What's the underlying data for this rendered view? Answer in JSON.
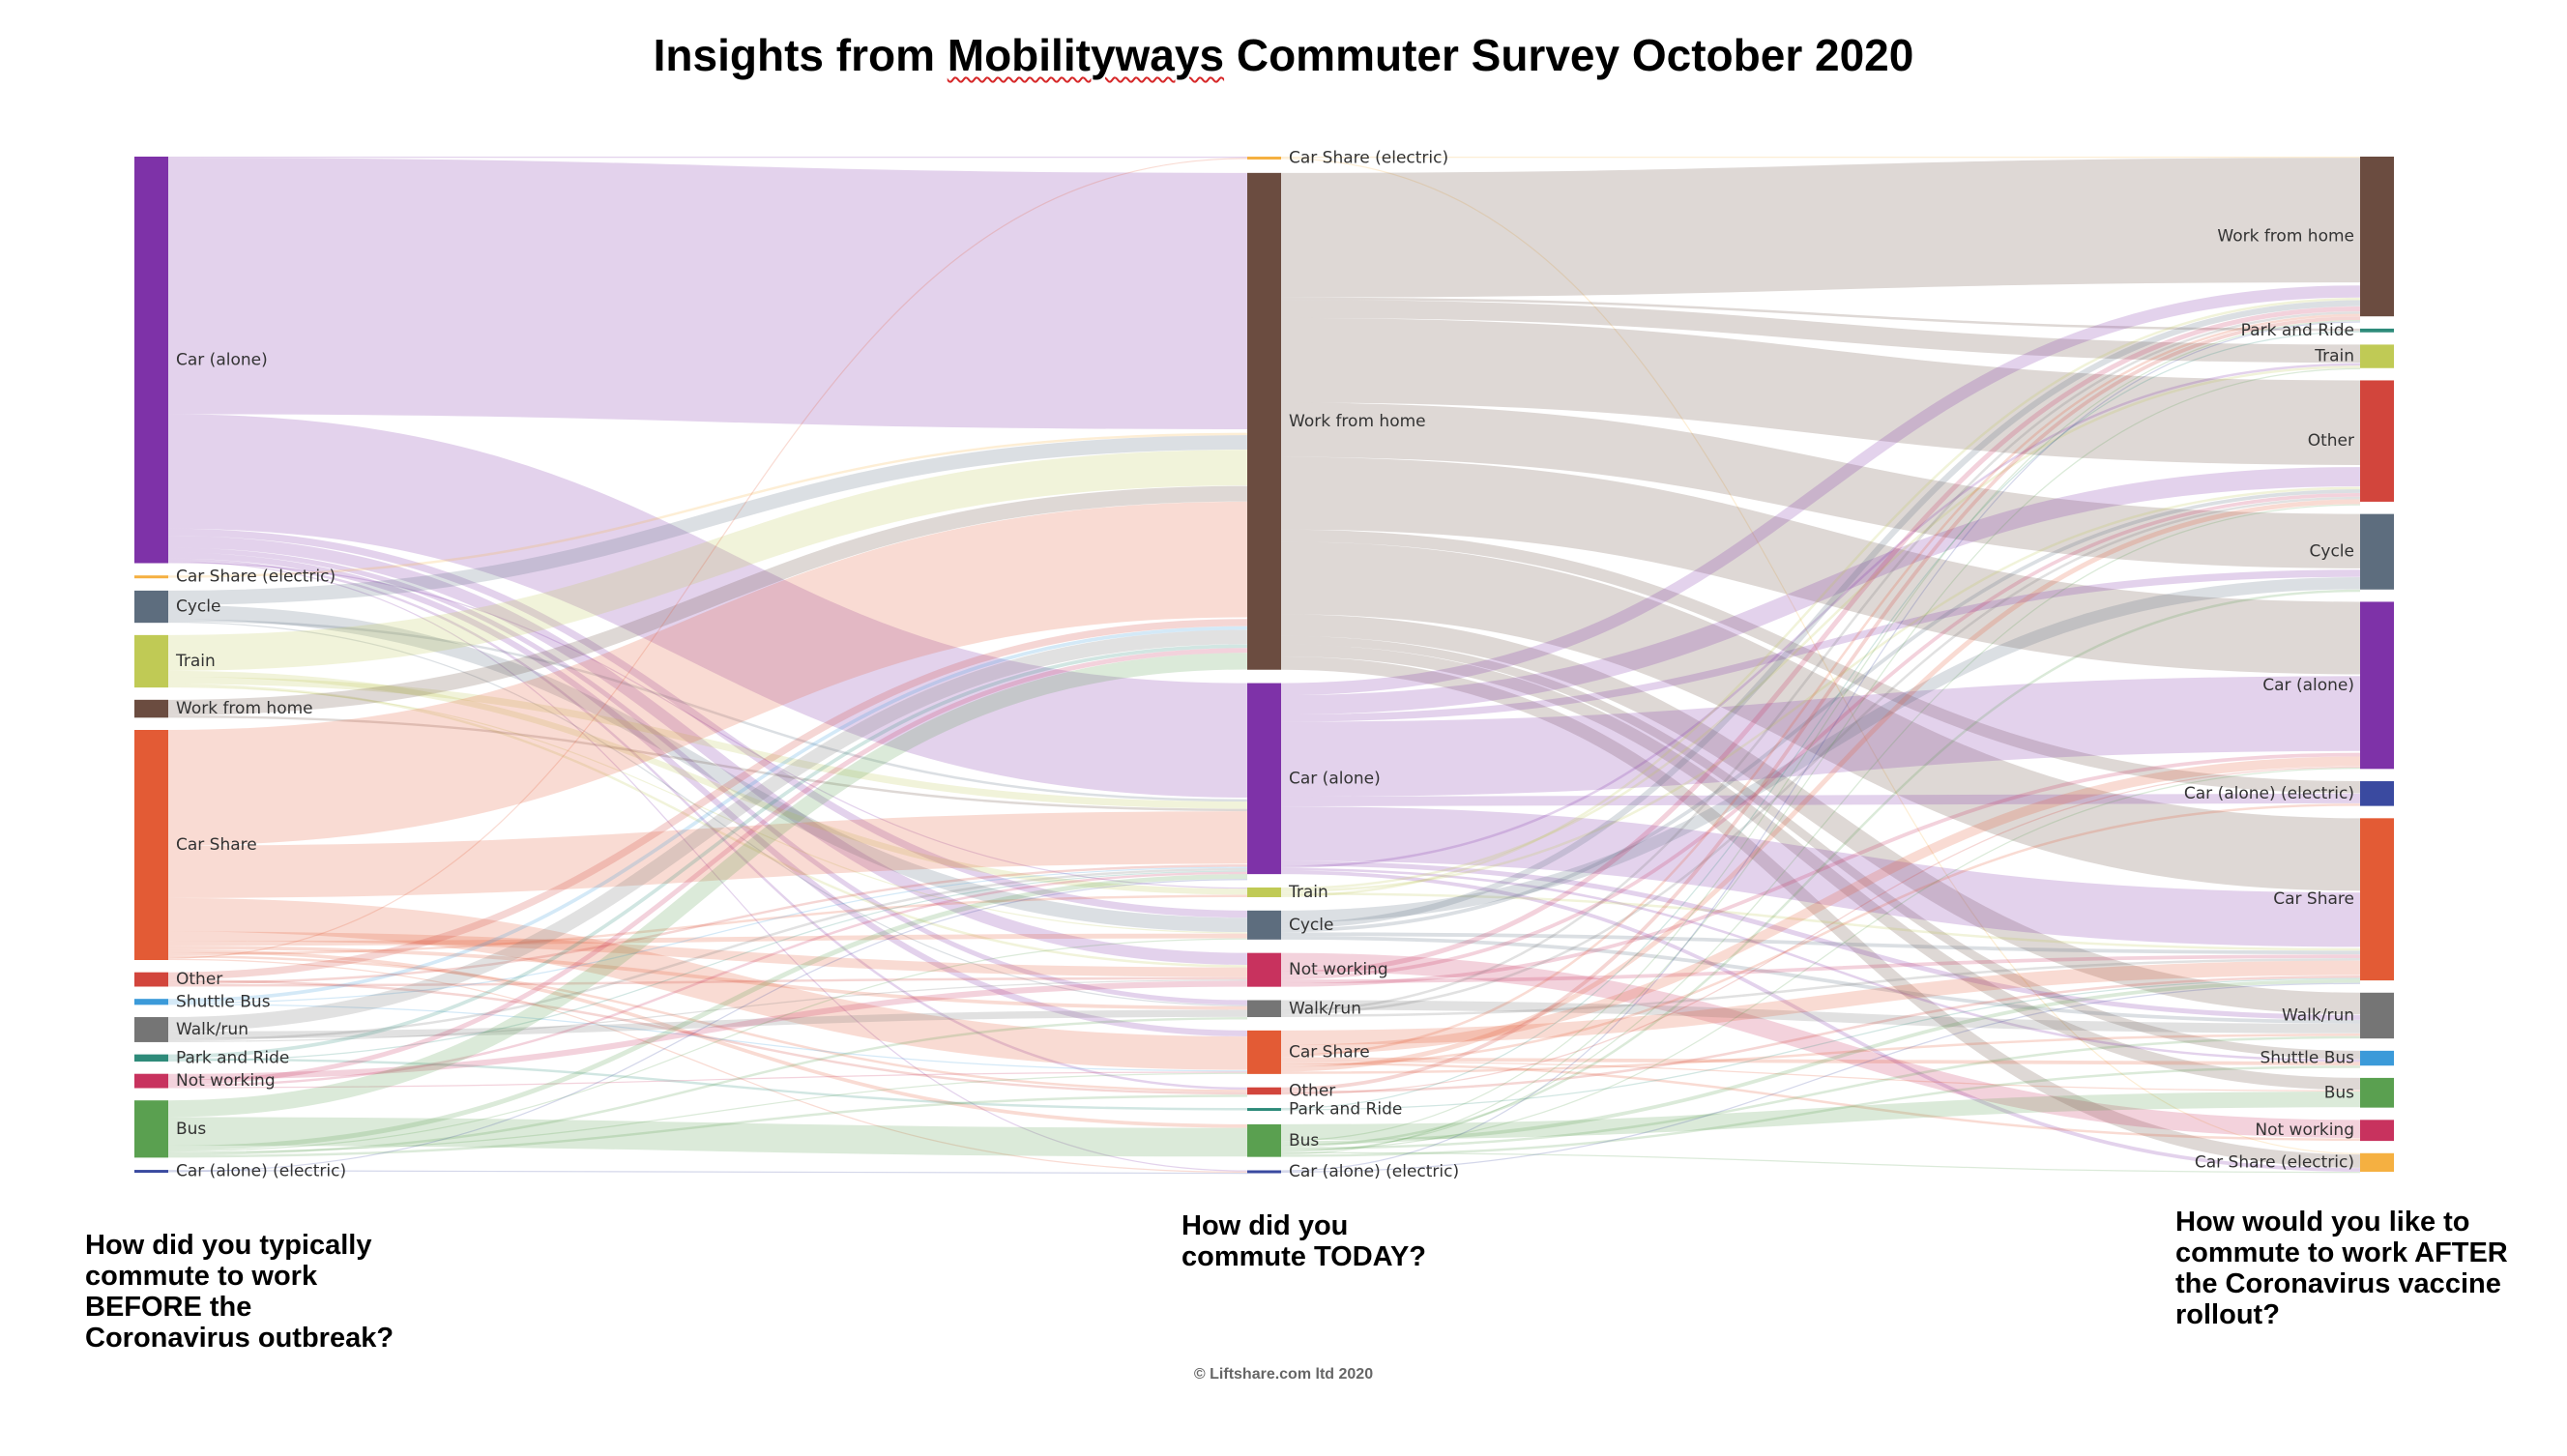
{
  "title": {
    "before": "Insights from ",
    "brand": "Mobilityways",
    "after": " Commuter Survey October 2020"
  },
  "questions": {
    "before": "How did you typically commute to work BEFORE the Coronavirus outbreak?",
    "today": "How did you commute TODAY?",
    "after": "How would you like to commute to work AFTER the Coronavirus vaccine rollout?"
  },
  "copyright": "© Liftshare.com ltd 2020",
  "colors": {
    "Car (alone)": "#7e32a8",
    "Car Share (electric)": "#f5b041",
    "Cycle": "#5d6d7e",
    "Train": "#c0ca55",
    "Work from home": "#6b4c40",
    "Car Share": "#e35b35",
    "Other": "#d2453c",
    "Shuttle Bus": "#3b9ad9",
    "Walk/run": "#757575",
    "Park and Ride": "#2e8b7a",
    "Not working": "#c8325e",
    "Bus": "#5aa050",
    "Car (alone) (electric)": "#3a4aa0"
  },
  "chart_data": {
    "type": "sankey",
    "columns": [
      {
        "name": "before",
        "nodes": [
          {
            "label": "Car (alone)",
            "value": 341
          },
          {
            "label": "Car Share (electric)",
            "value": 2
          },
          {
            "label": "Cycle",
            "value": 27
          },
          {
            "label": "Train",
            "value": 44
          },
          {
            "label": "Work from home",
            "value": 15
          },
          {
            "label": "Car Share",
            "value": 193
          },
          {
            "label": "Other",
            "value": 12
          },
          {
            "label": "Shuttle Bus",
            "value": 5
          },
          {
            "label": "Walk/run",
            "value": 21
          },
          {
            "label": "Park and Ride",
            "value": 6
          },
          {
            "label": "Not working",
            "value": 12
          },
          {
            "label": "Bus",
            "value": 48
          },
          {
            "label": "Car (alone) (electric)",
            "value": 2
          }
        ]
      },
      {
        "name": "today",
        "nodes": [
          {
            "label": "Car Share (electric)",
            "value": 2
          },
          {
            "label": "Work from home",
            "value": 411
          },
          {
            "label": "Car (alone)",
            "value": 158
          },
          {
            "label": "Train",
            "value": 8
          },
          {
            "label": "Cycle",
            "value": 24
          },
          {
            "label": "Not working",
            "value": 28
          },
          {
            "label": "Walk/run",
            "value": 14
          },
          {
            "label": "Car Share",
            "value": 36
          },
          {
            "label": "Other",
            "value": 6
          },
          {
            "label": "Park and Ride",
            "value": 2
          },
          {
            "label": "Bus",
            "value": 27
          },
          {
            "label": "Car (alone) (electric)",
            "value": 2
          }
        ]
      },
      {
        "name": "after",
        "nodes": [
          {
            "label": "Work from home",
            "value": 129
          },
          {
            "label": "Park and Ride",
            "value": 3
          },
          {
            "label": "Train",
            "value": 19
          },
          {
            "label": "Other",
            "value": 98
          },
          {
            "label": "Cycle",
            "value": 61
          },
          {
            "label": "Car (alone)",
            "value": 135
          },
          {
            "label": "Car (alone) (electric)",
            "value": 20
          },
          {
            "label": "Car Share",
            "value": 131
          },
          {
            "label": "Walk/run",
            "value": 37
          },
          {
            "label": "Shuttle Bus",
            "value": 12
          },
          {
            "label": "Bus",
            "value": 24
          },
          {
            "label": "Not working",
            "value": 17
          },
          {
            "label": "Car Share (electric)",
            "value": 15
          }
        ]
      }
    ],
    "links": [
      {
        "from": "Car (alone)",
        "to": "Car Share (electric)",
        "value": 1,
        "stage": 0
      },
      {
        "from": "Car (alone)",
        "to": "Work from home",
        "value": 215,
        "stage": 0
      },
      {
        "from": "Car (alone)",
        "to": "Car (alone)",
        "value": 96,
        "stage": 0
      },
      {
        "from": "Car (alone)",
        "to": "Cycle",
        "value": 6,
        "stage": 0
      },
      {
        "from": "Car (alone)",
        "to": "Not working",
        "value": 10,
        "stage": 0
      },
      {
        "from": "Car (alone)",
        "to": "Walk/run",
        "value": 4,
        "stage": 0
      },
      {
        "from": "Car (alone)",
        "to": "Car Share",
        "value": 5,
        "stage": 0
      },
      {
        "from": "Car (alone)",
        "to": "Other",
        "value": 2,
        "stage": 0
      },
      {
        "from": "Car (alone)",
        "to": "Car (alone) (electric)",
        "value": 1,
        "stage": 0
      },
      {
        "from": "Car (alone)",
        "to": "Train",
        "value": 1,
        "stage": 0
      },
      {
        "from": "Car Share (electric)",
        "to": "Work from home",
        "value": 2,
        "stage": 0
      },
      {
        "from": "Cycle",
        "to": "Work from home",
        "value": 12,
        "stage": 0
      },
      {
        "from": "Cycle",
        "to": "Cycle",
        "value": 12,
        "stage": 0
      },
      {
        "from": "Cycle",
        "to": "Car (alone)",
        "value": 2,
        "stage": 0
      },
      {
        "from": "Cycle",
        "to": "Walk/run",
        "value": 1,
        "stage": 0
      },
      {
        "from": "Train",
        "to": "Work from home",
        "value": 30,
        "stage": 0
      },
      {
        "from": "Train",
        "to": "Train",
        "value": 5,
        "stage": 0
      },
      {
        "from": "Train",
        "to": "Car (alone)",
        "value": 6,
        "stage": 0
      },
      {
        "from": "Train",
        "to": "Not working",
        "value": 2,
        "stage": 0
      },
      {
        "from": "Train",
        "to": "Cycle",
        "value": 1,
        "stage": 0
      },
      {
        "from": "Work from home",
        "to": "Work from home",
        "value": 13,
        "stage": 0
      },
      {
        "from": "Work from home",
        "to": "Car (alone)",
        "value": 2,
        "stage": 0
      },
      {
        "from": "Car Share",
        "to": "Work from home",
        "value": 97,
        "stage": 0
      },
      {
        "from": "Car Share",
        "to": "Car (alone)",
        "value": 44,
        "stage": 0
      },
      {
        "from": "Car Share",
        "to": "Car Share",
        "value": 28,
        "stage": 0
      },
      {
        "from": "Car Share",
        "to": "Not working",
        "value": 8,
        "stage": 0
      },
      {
        "from": "Car Share",
        "to": "Cycle",
        "value": 4,
        "stage": 0
      },
      {
        "from": "Car Share",
        "to": "Walk/run",
        "value": 3,
        "stage": 0
      },
      {
        "from": "Car Share",
        "to": "Bus",
        "value": 3,
        "stage": 0
      },
      {
        "from": "Car Share",
        "to": "Train",
        "value": 2,
        "stage": 0
      },
      {
        "from": "Car Share",
        "to": "Other",
        "value": 2,
        "stage": 0
      },
      {
        "from": "Car Share",
        "to": "Car Share (electric)",
        "value": 1,
        "stage": 0
      },
      {
        "from": "Car Share",
        "to": "Car (alone) (electric)",
        "value": 1,
        "stage": 0
      },
      {
        "from": "Other",
        "to": "Work from home",
        "value": 6,
        "stage": 0
      },
      {
        "from": "Other",
        "to": "Other",
        "value": 2,
        "stage": 0
      },
      {
        "from": "Other",
        "to": "Car (alone)",
        "value": 2,
        "stage": 0
      },
      {
        "from": "Other",
        "to": "Not working",
        "value": 2,
        "stage": 0
      },
      {
        "from": "Shuttle Bus",
        "to": "Work from home",
        "value": 3,
        "stage": 0
      },
      {
        "from": "Shuttle Bus",
        "to": "Car (alone)",
        "value": 1,
        "stage": 0
      },
      {
        "from": "Shuttle Bus",
        "to": "Car Share",
        "value": 1,
        "stage": 0
      },
      {
        "from": "Walk/run",
        "to": "Work from home",
        "value": 12,
        "stage": 0
      },
      {
        "from": "Walk/run",
        "to": "Walk/run",
        "value": 6,
        "stage": 0
      },
      {
        "from": "Walk/run",
        "to": "Car (alone)",
        "value": 2,
        "stage": 0
      },
      {
        "from": "Walk/run",
        "to": "Not working",
        "value": 1,
        "stage": 0
      },
      {
        "from": "Park and Ride",
        "to": "Work from home",
        "value": 3,
        "stage": 0
      },
      {
        "from": "Park and Ride",
        "to": "Park and Ride",
        "value": 2,
        "stage": 0
      },
      {
        "from": "Park and Ride",
        "to": "Car (alone)",
        "value": 1,
        "stage": 0
      },
      {
        "from": "Not working",
        "to": "Not working",
        "value": 5,
        "stage": 0
      },
      {
        "from": "Not working",
        "to": "Work from home",
        "value": 4,
        "stage": 0
      },
      {
        "from": "Not working",
        "to": "Car (alone)",
        "value": 2,
        "stage": 0
      },
      {
        "from": "Not working",
        "to": "Car Share",
        "value": 1,
        "stage": 0
      },
      {
        "from": "Bus",
        "to": "Work from home",
        "value": 14,
        "stage": 0
      },
      {
        "from": "Bus",
        "to": "Bus",
        "value": 24,
        "stage": 0
      },
      {
        "from": "Bus",
        "to": "Car (alone)",
        "value": 4,
        "stage": 0
      },
      {
        "from": "Bus",
        "to": "Cycle",
        "value": 1,
        "stage": 0
      },
      {
        "from": "Bus",
        "to": "Car Share",
        "value": 1,
        "stage": 0
      },
      {
        "from": "Bus",
        "to": "Walk/run",
        "value": 2,
        "stage": 0
      },
      {
        "from": "Bus",
        "to": "Other",
        "value": 2,
        "stage": 0
      },
      {
        "from": "Car (alone) (electric)",
        "to": "Car (alone) (electric)",
        "value": 1,
        "stage": 0
      },
      {
        "from": "Car (alone) (electric)",
        "to": "Car (alone)",
        "value": 1,
        "stage": 0
      },
      {
        "from": "Car Share (electric)",
        "to": "Work from home",
        "value": 1,
        "stage": 1
      },
      {
        "from": "Car Share (electric)",
        "to": "Car Share (electric)",
        "value": 1,
        "stage": 1
      },
      {
        "from": "Work from home",
        "to": "Work from home",
        "value": 103,
        "stage": 1
      },
      {
        "from": "Work from home",
        "to": "Park and Ride",
        "value": 2,
        "stage": 1
      },
      {
        "from": "Work from home",
        "to": "Train",
        "value": 15,
        "stage": 1
      },
      {
        "from": "Work from home",
        "to": "Other",
        "value": 70,
        "stage": 1
      },
      {
        "from": "Work from home",
        "to": "Cycle",
        "value": 45,
        "stage": 1
      },
      {
        "from": "Work from home",
        "to": "Car (alone)",
        "value": 60,
        "stage": 1
      },
      {
        "from": "Work from home",
        "to": "Car (alone) (electric)",
        "value": 10,
        "stage": 1
      },
      {
        "from": "Work from home",
        "to": "Car Share",
        "value": 60,
        "stage": 1
      },
      {
        "from": "Work from home",
        "to": "Walk/run",
        "value": 18,
        "stage": 1
      },
      {
        "from": "Work from home",
        "to": "Shuttle Bus",
        "value": 7,
        "stage": 1
      },
      {
        "from": "Work from home",
        "to": "Bus",
        "value": 10,
        "stage": 1
      },
      {
        "from": "Work from home",
        "to": "Car Share (electric)",
        "value": 11,
        "stage": 1
      },
      {
        "from": "Car (alone)",
        "to": "Work from home",
        "value": 10,
        "stage": 1
      },
      {
        "from": "Car (alone)",
        "to": "Other",
        "value": 16,
        "stage": 1
      },
      {
        "from": "Car (alone)",
        "to": "Cycle",
        "value": 6,
        "stage": 1
      },
      {
        "from": "Car (alone)",
        "to": "Car (alone)",
        "value": 62,
        "stage": 1
      },
      {
        "from": "Car (alone)",
        "to": "Car (alone) (electric)",
        "value": 8,
        "stage": 1
      },
      {
        "from": "Car (alone)",
        "to": "Car Share",
        "value": 45,
        "stage": 1
      },
      {
        "from": "Car (alone)",
        "to": "Walk/run",
        "value": 4,
        "stage": 1
      },
      {
        "from": "Car (alone)",
        "to": "Train",
        "value": 2,
        "stage": 1
      },
      {
        "from": "Car (alone)",
        "to": "Shuttle Bus",
        "value": 2,
        "stage": 1
      },
      {
        "from": "Car (alone)",
        "to": "Car Share (electric)",
        "value": 3,
        "stage": 1
      },
      {
        "from": "Train",
        "to": "Train",
        "value": 2,
        "stage": 1
      },
      {
        "from": "Train",
        "to": "Other",
        "value": 2,
        "stage": 1
      },
      {
        "from": "Train",
        "to": "Car Share",
        "value": 2,
        "stage": 1
      },
      {
        "from": "Train",
        "to": "Work from home",
        "value": 2,
        "stage": 1
      },
      {
        "from": "Cycle",
        "to": "Cycle",
        "value": 10,
        "stage": 1
      },
      {
        "from": "Cycle",
        "to": "Work from home",
        "value": 5,
        "stage": 1
      },
      {
        "from": "Cycle",
        "to": "Other",
        "value": 3,
        "stage": 1
      },
      {
        "from": "Cycle",
        "to": "Car Share",
        "value": 3,
        "stage": 1
      },
      {
        "from": "Cycle",
        "to": "Walk/run",
        "value": 3,
        "stage": 1
      },
      {
        "from": "Not working",
        "to": "Not working",
        "value": 15,
        "stage": 1
      },
      {
        "from": "Not working",
        "to": "Work from home",
        "value": 4,
        "stage": 1
      },
      {
        "from": "Not working",
        "to": "Other",
        "value": 3,
        "stage": 1
      },
      {
        "from": "Not working",
        "to": "Car Share",
        "value": 3,
        "stage": 1
      },
      {
        "from": "Not working",
        "to": "Car (alone)",
        "value": 3,
        "stage": 1
      },
      {
        "from": "Walk/run",
        "to": "Walk/run",
        "value": 8,
        "stage": 1
      },
      {
        "from": "Walk/run",
        "to": "Work from home",
        "value": 2,
        "stage": 1
      },
      {
        "from": "Walk/run",
        "to": "Other",
        "value": 2,
        "stage": 1
      },
      {
        "from": "Walk/run",
        "to": "Car Share",
        "value": 2,
        "stage": 1
      },
      {
        "from": "Car Share",
        "to": "Car Share",
        "value": 12,
        "stage": 1
      },
      {
        "from": "Car Share",
        "to": "Car (alone)",
        "value": 8,
        "stage": 1
      },
      {
        "from": "Car Share",
        "to": "Work from home",
        "value": 2,
        "stage": 1
      },
      {
        "from": "Car Share",
        "to": "Shuttle Bus",
        "value": 3,
        "stage": 1
      },
      {
        "from": "Car Share",
        "to": "Bus",
        "value": 1,
        "stage": 1
      },
      {
        "from": "Car Share",
        "to": "Not working",
        "value": 2,
        "stage": 1
      },
      {
        "from": "Car Share",
        "to": "Car (alone) (electric)",
        "value": 2,
        "stage": 1
      },
      {
        "from": "Car Share",
        "to": "Other",
        "value": 4,
        "stage": 1
      },
      {
        "from": "Car Share",
        "to": "Walk/run",
        "value": 2,
        "stage": 1
      },
      {
        "from": "Other",
        "to": "Work from home",
        "value": 3,
        "stage": 1
      },
      {
        "from": "Other",
        "to": "Car Share",
        "value": 2,
        "stage": 1
      },
      {
        "from": "Other",
        "to": "Car (alone)",
        "value": 1,
        "stage": 1
      },
      {
        "from": "Park and Ride",
        "to": "Park and Ride",
        "value": 1,
        "stage": 1
      },
      {
        "from": "Park and Ride",
        "to": "Car Share",
        "value": 1,
        "stage": 1
      },
      {
        "from": "Bus",
        "to": "Bus",
        "value": 13,
        "stage": 1
      },
      {
        "from": "Bus",
        "to": "Work from home",
        "value": 1,
        "stage": 1
      },
      {
        "from": "Bus",
        "to": "Car Share",
        "value": 3,
        "stage": 1
      },
      {
        "from": "Bus",
        "to": "Cycle",
        "value": 2,
        "stage": 1
      },
      {
        "from": "Bus",
        "to": "Walk/run",
        "value": 2,
        "stage": 1
      },
      {
        "from": "Bus",
        "to": "Car (alone)",
        "value": 1,
        "stage": 1
      },
      {
        "from": "Bus",
        "to": "Other",
        "value": 1,
        "stage": 1
      },
      {
        "from": "Bus",
        "to": "Car Share (electric)",
        "value": 1,
        "stage": 1
      },
      {
        "from": "Bus",
        "to": "Train",
        "value": 1,
        "stage": 1
      },
      {
        "from": "Bus",
        "to": "Shuttle Bus",
        "value": 2,
        "stage": 1
      },
      {
        "from": "Car (alone) (electric)",
        "to": "Work from home",
        "value": 1,
        "stage": 1
      },
      {
        "from": "Car (alone) (electric)",
        "to": "Car Share",
        "value": 1,
        "stage": 1
      }
    ]
  }
}
